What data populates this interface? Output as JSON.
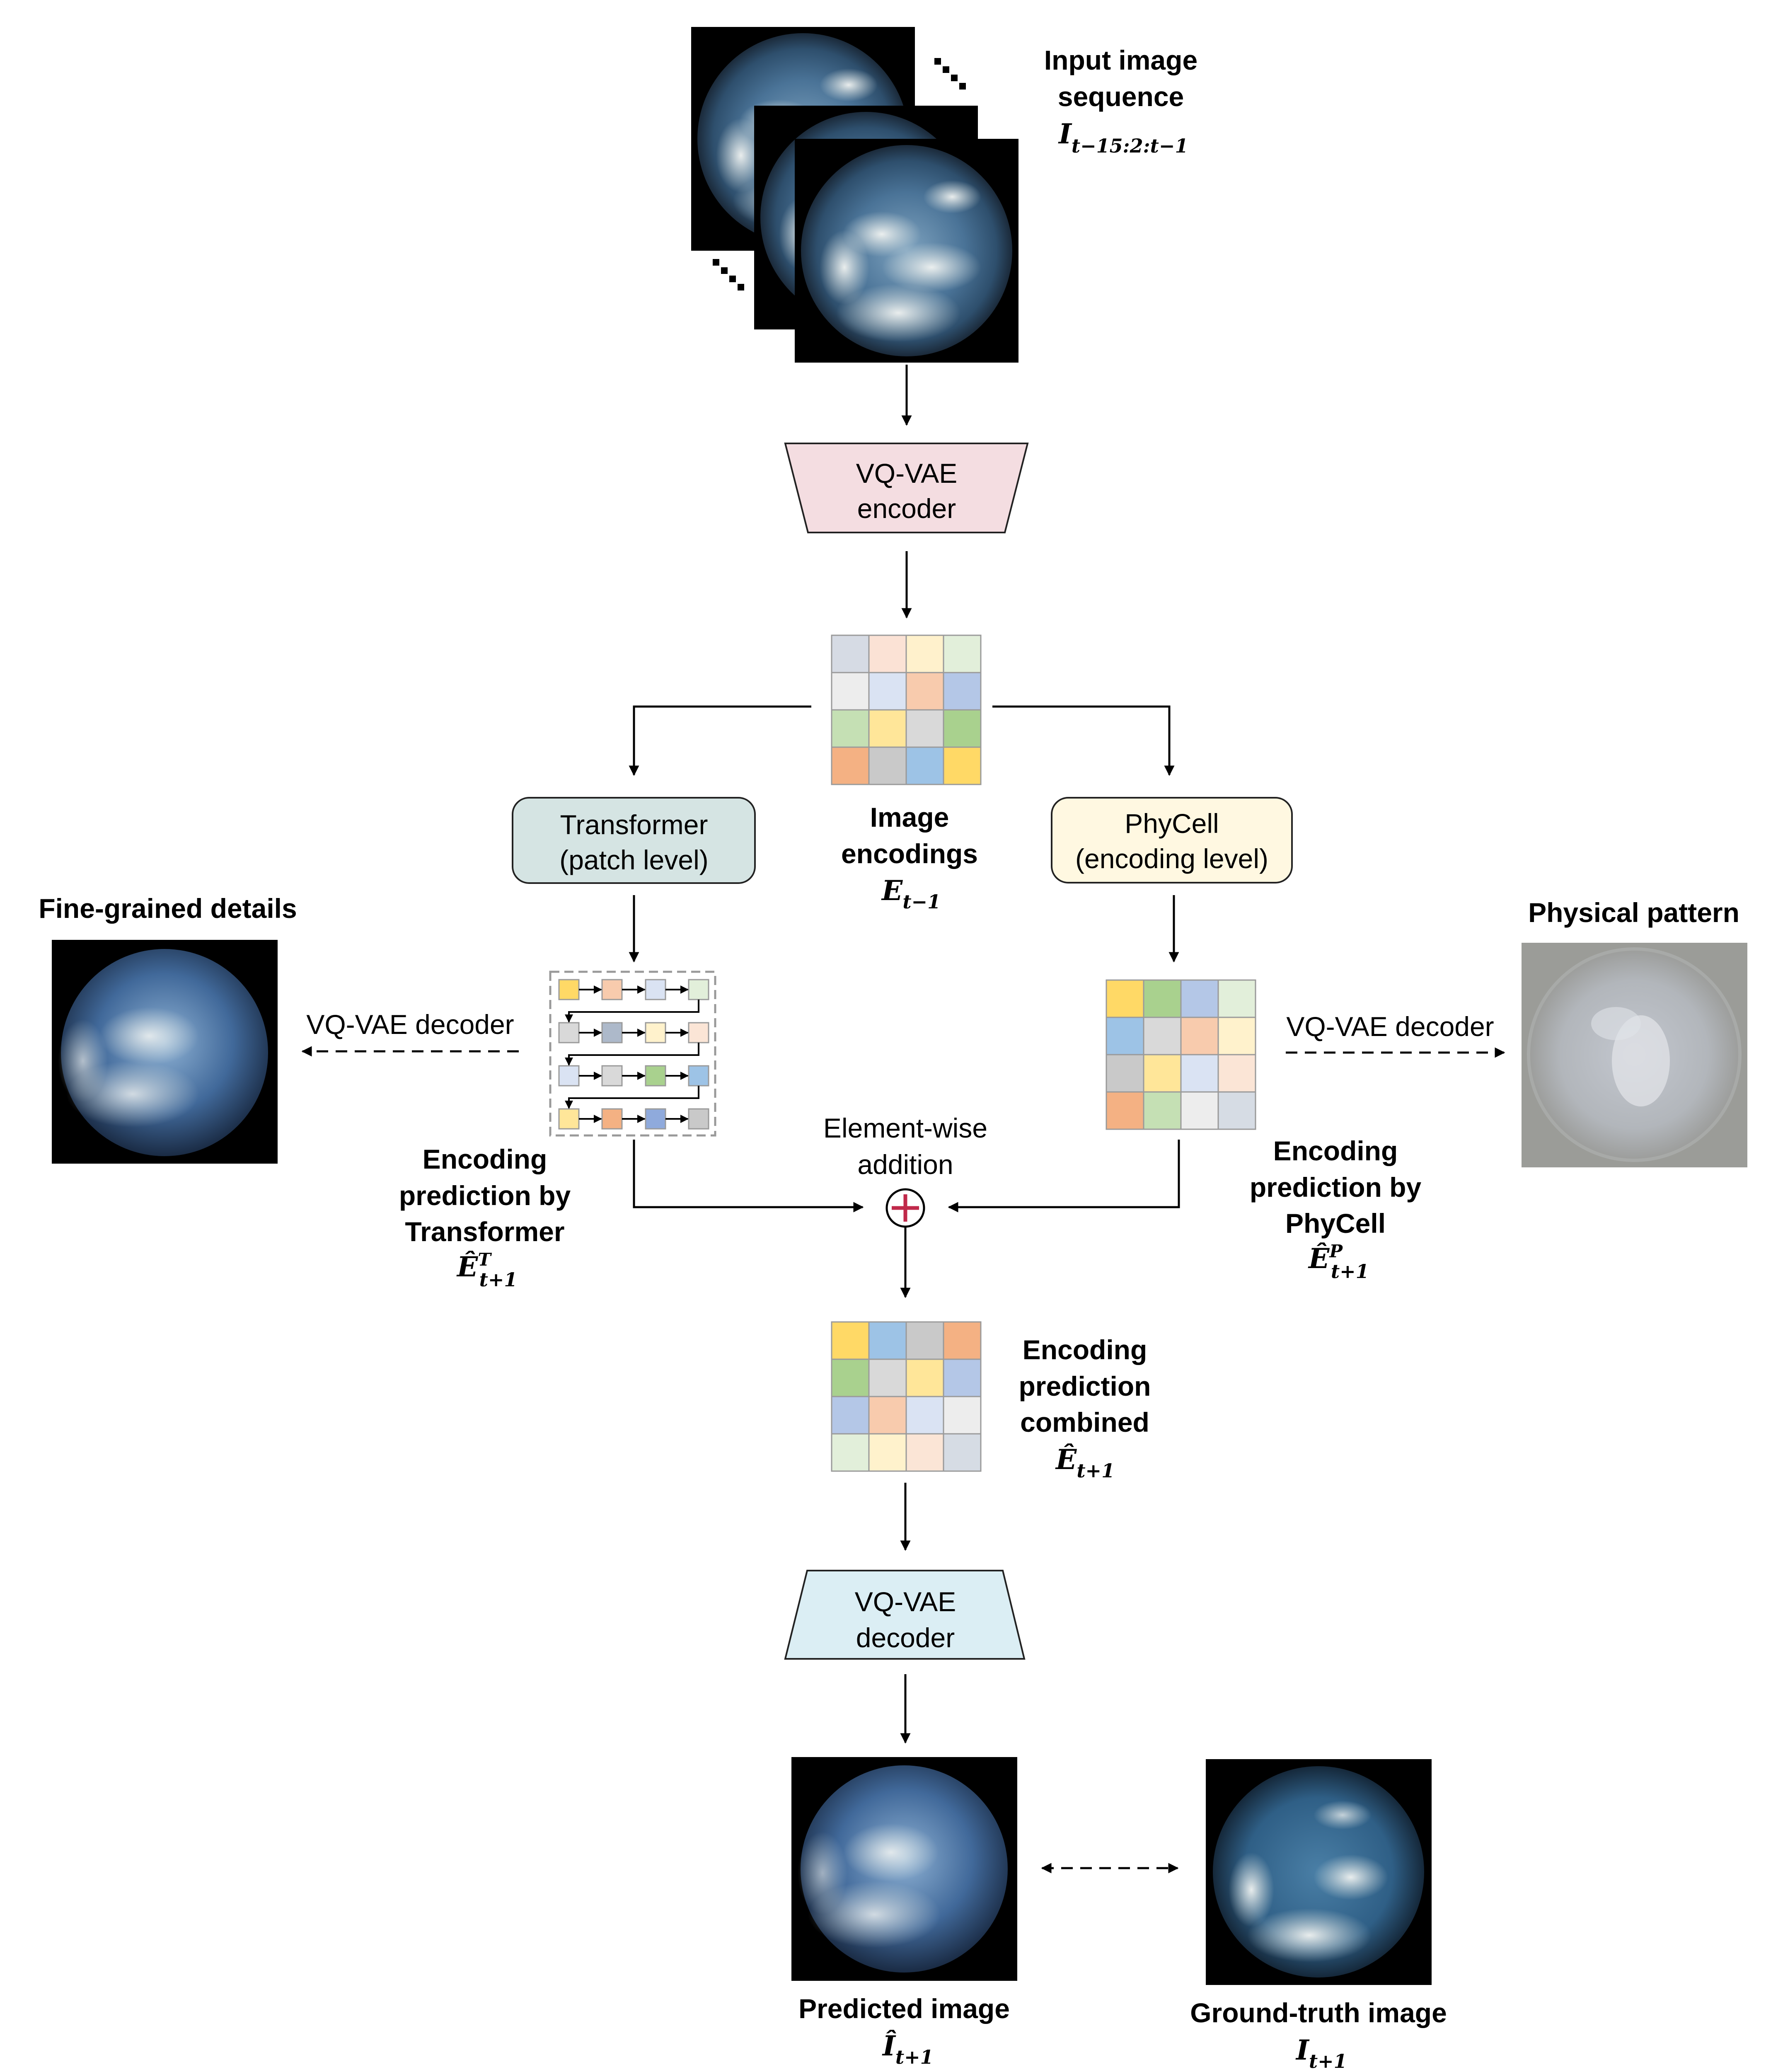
{
  "input": {
    "title_line1": "Input image",
    "title_line2": "sequence",
    "symbol": "I",
    "subscript": "t−15:2:t−1"
  },
  "encoder": {
    "line1": "VQ-VAE",
    "line2": "encoder"
  },
  "image_encodings": {
    "line1": "Image",
    "line2": "encodings",
    "symbol": "E",
    "subscript": "t−1",
    "grid_colors": [
      "#d6dbe4",
      "#fbe2d5",
      "#fff1cc",
      "#e2efda",
      "#ededed",
      "#dae3f3",
      "#f8cbad",
      "#b4c7e7",
      "#c5e0b4",
      "#ffe699",
      "#d9d9d9",
      "#a9d18e",
      "#f4b183",
      "#c9c9c9",
      "#9dc3e6",
      "#ffd966"
    ]
  },
  "transformer": {
    "line1": "Transformer",
    "line2": "(patch level)",
    "color": "#d5e4e3",
    "seq_colors": [
      [
        "#ffd966",
        "#f8cbad",
        "#dae3f3",
        "#e2efda"
      ],
      [
        "#d9d9d9",
        "#adb9ca",
        "#fff2cc",
        "#fbe5d6"
      ],
      [
        "#dae3f3",
        "#d9d9d9",
        "#a9d18e",
        "#9dc3e6"
      ],
      [
        "#ffe699",
        "#f4b183",
        "#8faadc",
        "#c9c9c9"
      ]
    ],
    "pred_line1": "Encoding",
    "pred_line2": "prediction by",
    "pred_line3": "Transformer",
    "symbol": "Ê",
    "superscript": "T",
    "subscript": "t+1"
  },
  "phycell": {
    "line1": "PhyCell",
    "line2": "(encoding level)",
    "color": "#fff8e1",
    "grid_colors": [
      "#ffd966",
      "#a9d18e",
      "#b4c7e7",
      "#e2efda",
      "#9dc3e6",
      "#d9d9d9",
      "#f8cbad",
      "#fff2cc",
      "#c9c9c9",
      "#ffe699",
      "#dae3f3",
      "#fbe5d6",
      "#f4b183",
      "#c5e0b4",
      "#ededed",
      "#d6dce4"
    ],
    "pred_line1": "Encoding",
    "pred_line2": "prediction by",
    "pred_line3": "PhyCell",
    "symbol": "Ê",
    "superscript": "P",
    "subscript": "t+1"
  },
  "left_decoder_label": "VQ-VAE decoder",
  "right_decoder_label": "VQ-VAE decoder",
  "fine_grained_title": "Fine-grained details",
  "physical_pattern_title": "Physical pattern",
  "addition": {
    "line1": "Element-wise",
    "line2": "addition",
    "symbol": "+"
  },
  "combined": {
    "line1": "Encoding",
    "line2": "prediction",
    "line3": "combined",
    "symbol": "Ê",
    "subscript": "t+1",
    "grid_colors": [
      "#ffd966",
      "#9dc3e6",
      "#c9c9c9",
      "#f4b183",
      "#a9d18e",
      "#d9d9d9",
      "#ffe699",
      "#b4c7e7",
      "#b4c7e7",
      "#f8cbad",
      "#dae3f3",
      "#ededed",
      "#e2efda",
      "#fff2cc",
      "#fbe5d6",
      "#d6dce4"
    ]
  },
  "decoder": {
    "line1": "VQ-VAE",
    "line2": "decoder"
  },
  "predicted": {
    "title": "Predicted image",
    "symbol": "Î",
    "subscript": "t+1"
  },
  "ground_truth": {
    "title": "Ground-truth image",
    "symbol": "I",
    "subscript": "t+1"
  },
  "colors": {
    "encoder_fill": "#f4dde1",
    "decoder_fill": "#dbeef4",
    "plus_color": "#c0294a",
    "sky_blue": "#3f6f97"
  }
}
